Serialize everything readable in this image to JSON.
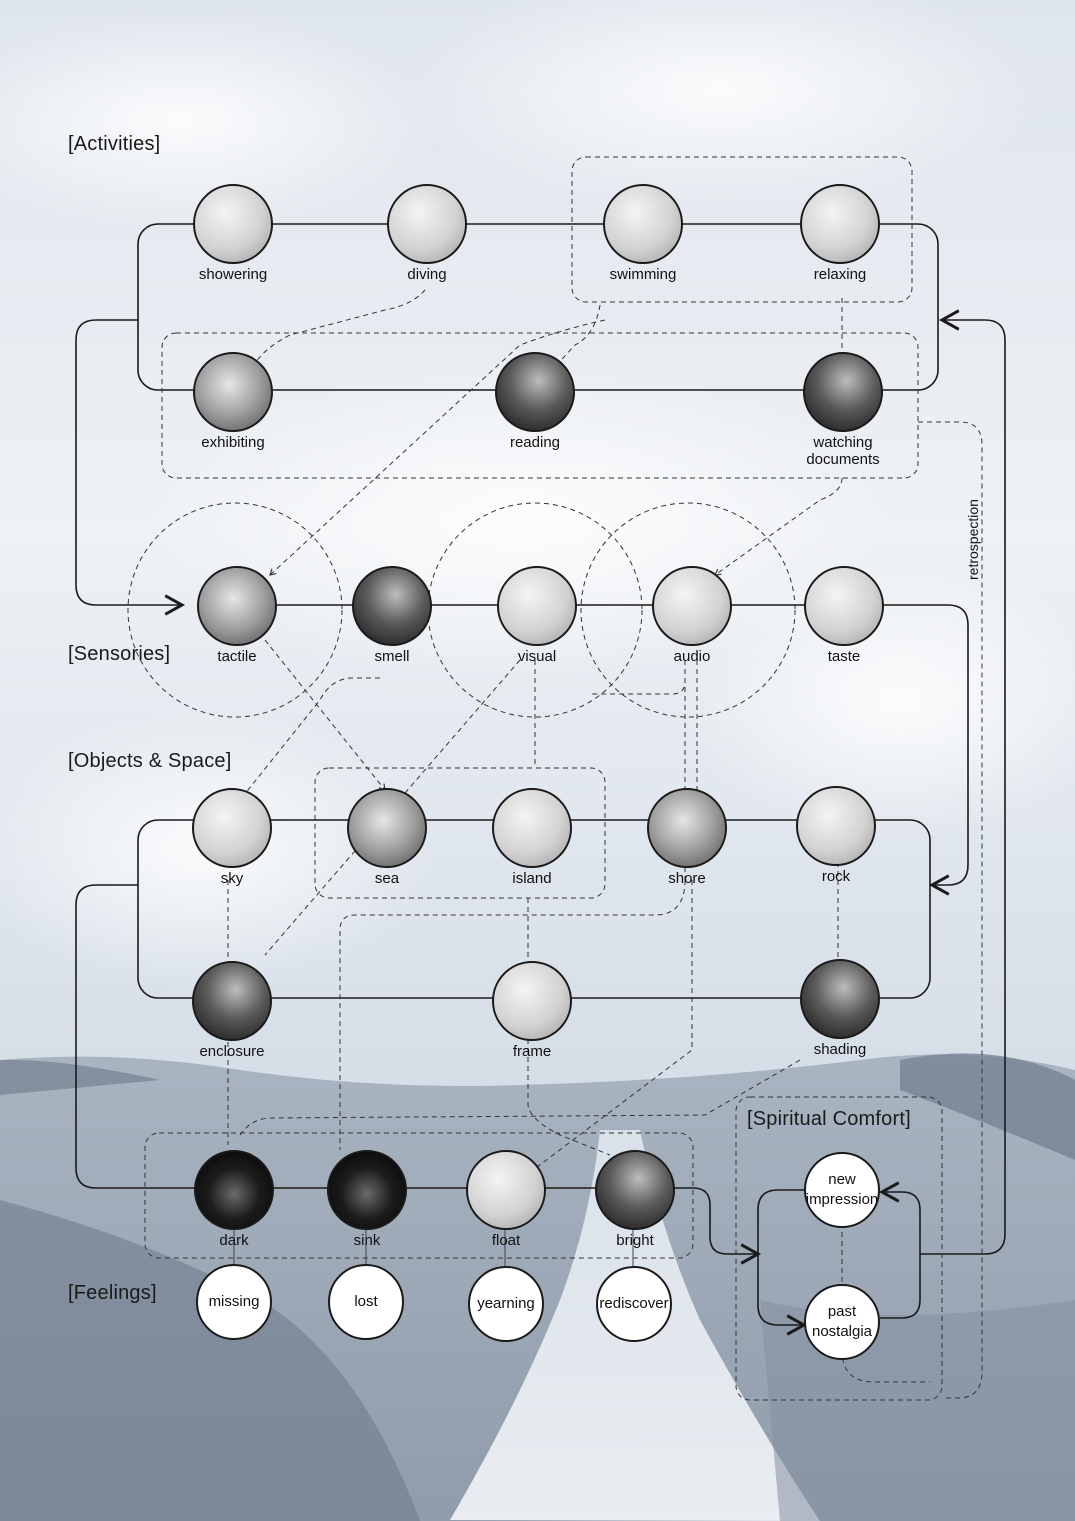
{
  "sections": {
    "activities": "[Activities]",
    "sensories": "[Sensories]",
    "objects_space": "[Objects & Space]",
    "feelings": "[Feelings]",
    "spiritual_comfort": "[Spiritual Comfort]"
  },
  "retrospection_label": "retrospection",
  "nodes": {
    "showering": {
      "label": "showering",
      "tone": "light"
    },
    "diving": {
      "label": "diving",
      "tone": "light"
    },
    "swimming": {
      "label": "swimming",
      "tone": "light"
    },
    "relaxing": {
      "label": "relaxing",
      "tone": "light"
    },
    "exhibiting": {
      "label": "exhibiting",
      "tone": "mid"
    },
    "reading": {
      "label": "reading",
      "tone": "dark"
    },
    "watching": {
      "label": "watching documents",
      "tone": "dark"
    },
    "tactile": {
      "label": "tactile",
      "tone": "mid"
    },
    "smell": {
      "label": "smell",
      "tone": "dark"
    },
    "visual": {
      "label": "visual",
      "tone": "light"
    },
    "audio": {
      "label": "audio",
      "tone": "light"
    },
    "taste": {
      "label": "taste",
      "tone": "light"
    },
    "sky": {
      "label": "sky",
      "tone": "light"
    },
    "sea": {
      "label": "sea",
      "tone": "mid"
    },
    "island": {
      "label": "island",
      "tone": "light"
    },
    "shore": {
      "label": "shore",
      "tone": "mid"
    },
    "rock": {
      "label": "rock",
      "tone": "light"
    },
    "enclosure": {
      "label": "enclosure",
      "tone": "dark"
    },
    "frame": {
      "label": "frame",
      "tone": "light"
    },
    "shading": {
      "label": "shading",
      "tone": "dark"
    },
    "dark": {
      "label": "dark",
      "tone": "black"
    },
    "sink": {
      "label": "sink",
      "tone": "black"
    },
    "float": {
      "label": "float",
      "tone": "light"
    },
    "bright": {
      "label": "bright",
      "tone": "dark"
    }
  },
  "feelings": {
    "missing": "missing",
    "lost": "lost",
    "yearning": "yearning",
    "rediscover": "rediscover"
  },
  "comfort": {
    "new": "new impression",
    "past": "past nostalgia"
  },
  "colors": {
    "line": "#1a1a1a",
    "dashed": "#333333",
    "sky_top": "#e4e9f0",
    "sky_bottom": "#c3cedb",
    "ground": "#8f9cab"
  }
}
